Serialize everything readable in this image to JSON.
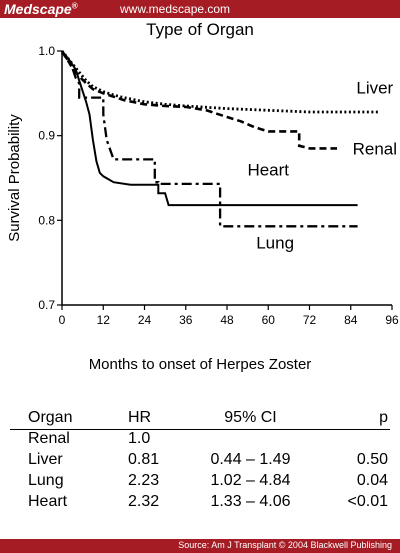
{
  "header": {
    "brand": "Medscape",
    "brand_mark": "®",
    "site": "www.medscape.com"
  },
  "chart_data": {
    "type": "line",
    "title": "Type of Organ",
    "xlabel": "Months to onset of Herpes Zoster",
    "ylabel": "Survival Probability",
    "xlim": [
      0,
      96
    ],
    "ylim": [
      0.7,
      1.0
    ],
    "xticks": [
      0,
      12,
      24,
      36,
      48,
      60,
      72,
      84,
      96
    ],
    "yticks": [
      0.7,
      0.8,
      0.9,
      1.0
    ],
    "grid": false,
    "series": [
      {
        "name": "Liver",
        "style": "dotted",
        "points": [
          [
            0,
            1.0
          ],
          [
            1,
            0.995
          ],
          [
            2,
            0.99
          ],
          [
            3,
            0.985
          ],
          [
            5,
            0.975
          ],
          [
            7,
            0.965
          ],
          [
            9,
            0.958
          ],
          [
            12,
            0.952
          ],
          [
            15,
            0.948
          ],
          [
            18,
            0.945
          ],
          [
            24,
            0.94
          ],
          [
            30,
            0.937
          ],
          [
            36,
            0.935
          ],
          [
            48,
            0.932
          ],
          [
            60,
            0.93
          ],
          [
            72,
            0.928
          ],
          [
            84,
            0.928
          ],
          [
            92,
            0.928
          ]
        ]
      },
      {
        "name": "Renal",
        "style": "dashed",
        "points": [
          [
            0,
            1.0
          ],
          [
            1,
            0.993
          ],
          [
            2,
            0.987
          ],
          [
            3,
            0.98
          ],
          [
            5,
            0.97
          ],
          [
            7,
            0.962
          ],
          [
            9,
            0.955
          ],
          [
            12,
            0.95
          ],
          [
            15,
            0.946
          ],
          [
            18,
            0.942
          ],
          [
            24,
            0.937
          ],
          [
            30,
            0.935
          ],
          [
            36,
            0.934
          ],
          [
            42,
            0.93
          ],
          [
            45,
            0.926
          ],
          [
            48,
            0.922
          ],
          [
            52,
            0.917
          ],
          [
            56,
            0.91
          ],
          [
            60,
            0.905
          ],
          [
            69,
            0.905
          ],
          [
            69,
            0.888
          ],
          [
            72,
            0.885
          ],
          [
            80,
            0.885
          ]
        ]
      },
      {
        "name": "Heart",
        "style": "solid",
        "points": [
          [
            0,
            1.0
          ],
          [
            2,
            0.99
          ],
          [
            4,
            0.978
          ],
          [
            5,
            0.965
          ],
          [
            7,
            0.94
          ],
          [
            8,
            0.925
          ],
          [
            9,
            0.895
          ],
          [
            10,
            0.87
          ],
          [
            11,
            0.856
          ],
          [
            12,
            0.852
          ],
          [
            15,
            0.845
          ],
          [
            20,
            0.842
          ],
          [
            28,
            0.842
          ],
          [
            28,
            0.832
          ],
          [
            30,
            0.832
          ],
          [
            31,
            0.818
          ],
          [
            46,
            0.818
          ],
          [
            86,
            0.818
          ]
        ]
      },
      {
        "name": "Lung",
        "style": "dashdot",
        "points": [
          [
            0,
            1.0
          ],
          [
            3,
            0.98
          ],
          [
            4,
            0.968
          ],
          [
            5,
            0.962
          ],
          [
            5,
            0.945
          ],
          [
            12,
            0.945
          ],
          [
            12,
            0.925
          ],
          [
            13,
            0.895
          ],
          [
            15,
            0.872
          ],
          [
            27,
            0.872
          ],
          [
            27,
            0.845
          ],
          [
            28,
            0.845
          ],
          [
            28,
            0.843
          ],
          [
            46,
            0.843
          ],
          [
            46,
            0.793
          ],
          [
            86,
            0.793
          ]
        ]
      }
    ],
    "labels": [
      "Liver",
      "Renal",
      "Heart",
      "Lung"
    ]
  },
  "table": {
    "headers": [
      "Organ",
      "HR",
      "95% CI",
      "p"
    ],
    "rows": [
      [
        "Renal",
        "1.0",
        "",
        ""
      ],
      [
        "Liver",
        "0.81",
        "0.44 – 1.49",
        "0.50"
      ],
      [
        "Lung",
        "2.23",
        "1.02 – 4.84",
        "0.04"
      ],
      [
        "Heart",
        "2.32",
        "1.33 – 4.06",
        "<0.01"
      ]
    ]
  },
  "footer": {
    "source": "Source: Am J Transplant © 2004 Blackwell Publishing"
  }
}
